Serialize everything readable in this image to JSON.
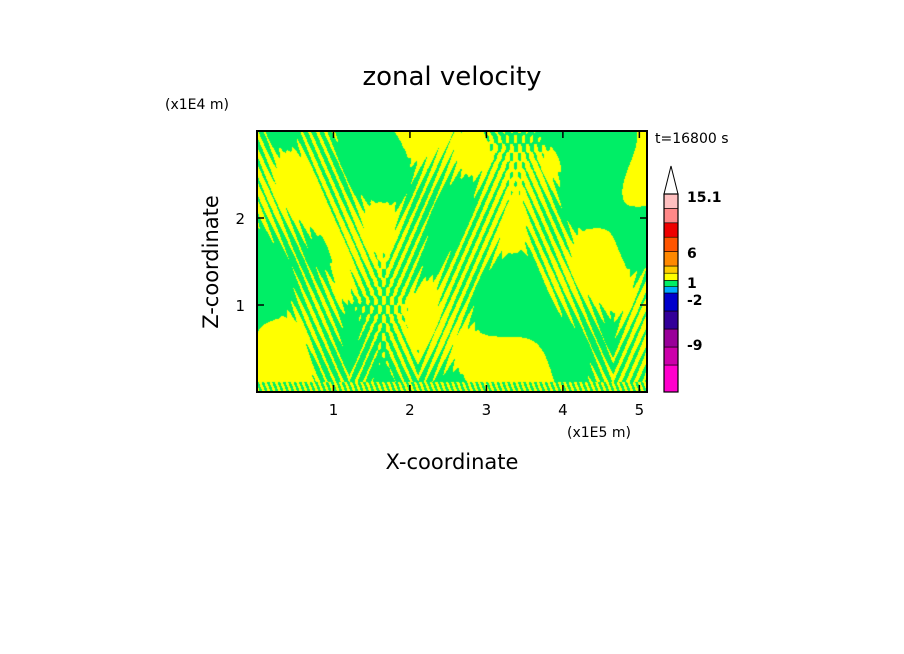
{
  "chart_data": {
    "type": "heatmap",
    "title": "zonal velocity",
    "time_label": "t=16800 s",
    "xlabel": "X-coordinate",
    "ylabel": "Z-coordinate",
    "x_unit_label": "(x1E5 m)",
    "y_unit_label": "(x1E4 m)",
    "xlim": [
      0.0,
      5.1
    ],
    "ylim": [
      0.0,
      3.0
    ],
    "x_ticks": [
      1,
      2,
      3,
      4,
      5
    ],
    "y_ticks": [
      1,
      2
    ],
    "x_tick_labels": [
      "1",
      "2",
      "3",
      "4",
      "5"
    ],
    "y_tick_labels": [
      "1",
      "2"
    ],
    "colorbar": {
      "levels": [
        {
          "color": "#ff00cc"
        },
        {
          "color": "#cc00aa"
        },
        {
          "color": "#990099"
        },
        {
          "color": "#330099"
        },
        {
          "color": "#0000cc"
        },
        {
          "color": "#00aaff"
        },
        {
          "color": "#00ee66"
        },
        {
          "color": "#ffff00"
        },
        {
          "color": "#ffcc00"
        },
        {
          "color": "#ff8800"
        },
        {
          "color": "#ff5500"
        },
        {
          "color": "#ee0000"
        },
        {
          "color": "#ff8888"
        },
        {
          "color": "#ffc0c0"
        }
      ],
      "labels": [
        "15.1",
        "6",
        "1",
        "-2",
        "-9"
      ],
      "extend_top": true
    },
    "field_colors": {
      "positive": "#ffff00",
      "negative": "#00ee66"
    }
  }
}
